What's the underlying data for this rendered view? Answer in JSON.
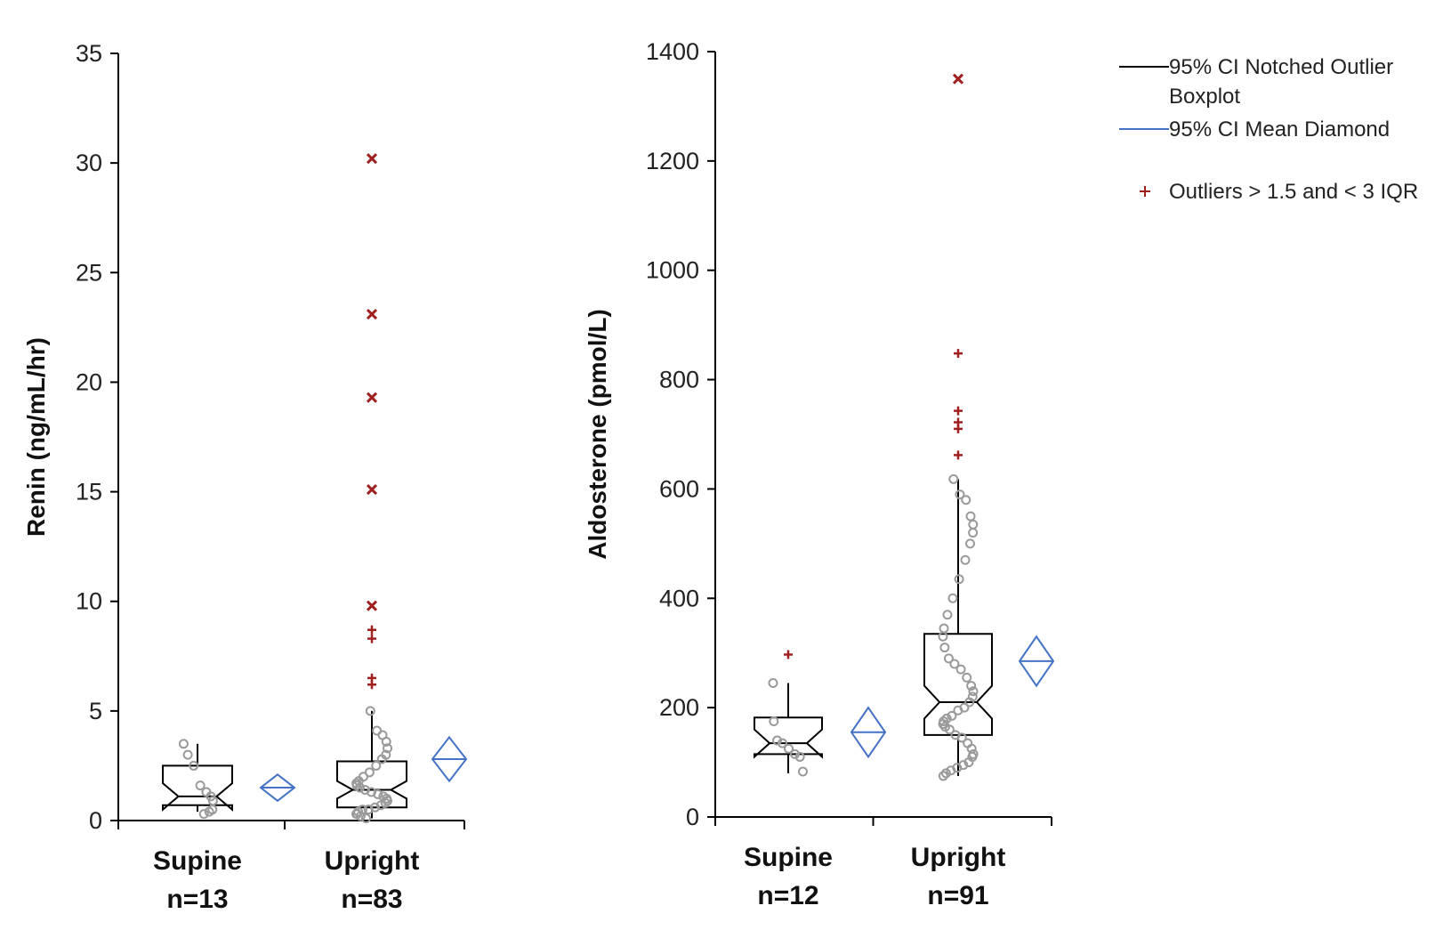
{
  "chart_data": [
    {
      "type": "boxplot",
      "ylabel": "Renin (ng/mL/hr)",
      "ylim": [
        0,
        35
      ],
      "yticks": [
        0,
        5,
        10,
        15,
        20,
        25,
        30,
        35
      ],
      "groups": [
        {
          "name": "Supine",
          "n_label": "n=13",
          "whisker_low": 0.4,
          "q1": 0.7,
          "median": 1.1,
          "q3": 2.5,
          "whisker_high": 3.5,
          "notch_low": 0.5,
          "notch_high": 1.7,
          "points": [
            0.3,
            0.4,
            0.5,
            0.9,
            1.1,
            1.3,
            1.6,
            2.5,
            3.0,
            3.5
          ],
          "outliers_mild": [],
          "outliers_extreme": [],
          "mean_diamond": {
            "mean": 1.5,
            "ci_low": 0.9,
            "ci_high": 2.1
          }
        },
        {
          "name": "Upright",
          "n_label": "n=83",
          "whisker_low": 0.1,
          "q1": 0.6,
          "median": 1.4,
          "q3": 2.7,
          "whisker_high": 5.0,
          "notch_low": 1.0,
          "notch_high": 1.8,
          "points": [
            0.1,
            0.2,
            0.3,
            0.3,
            0.4,
            0.5,
            0.5,
            0.6,
            0.7,
            0.8,
            0.9,
            1.0,
            1.1,
            1.2,
            1.3,
            1.4,
            1.5,
            1.6,
            1.7,
            1.8,
            2.0,
            2.2,
            2.5,
            2.8,
            3.0,
            3.3,
            3.6,
            3.9,
            4.1,
            5.0
          ],
          "outliers_mild": [
            6.2,
            6.5,
            8.3,
            8.7
          ],
          "outliers_extreme": [
            9.8,
            15.1,
            19.3,
            23.1,
            30.2
          ],
          "mean_diamond": {
            "mean": 2.8,
            "ci_low": 1.8,
            "ci_high": 3.8
          }
        }
      ]
    },
    {
      "type": "boxplot",
      "ylabel": "Aldosterone (pmol/L)",
      "ylim": [
        0,
        1400
      ],
      "yticks": [
        0,
        200,
        400,
        600,
        800,
        1000,
        1200,
        1400
      ],
      "groups": [
        {
          "name": "Supine",
          "n_label": "n=12",
          "whisker_low": 80,
          "q1": 115,
          "median": 135,
          "q3": 182,
          "whisker_high": 245,
          "notch_low": 110,
          "notch_high": 160,
          "points": [
            83,
            110,
            115,
            125,
            135,
            140,
            175,
            245
          ],
          "outliers_mild": [
            297
          ],
          "outliers_extreme": [],
          "mean_diamond": {
            "mean": 155,
            "ci_low": 110,
            "ci_high": 200
          }
        },
        {
          "name": "Upright",
          "n_label": "n=91",
          "whisker_low": 75,
          "q1": 150,
          "median": 210,
          "q3": 335,
          "whisker_high": 618,
          "notch_low": 180,
          "notch_high": 240,
          "points": [
            75,
            80,
            85,
            90,
            95,
            100,
            110,
            115,
            125,
            135,
            145,
            150,
            160,
            165,
            170,
            175,
            180,
            185,
            195,
            200,
            210,
            220,
            230,
            240,
            255,
            270,
            280,
            290,
            310,
            330,
            345,
            370,
            400,
            435,
            470,
            500,
            520,
            535,
            550,
            580,
            590,
            618
          ],
          "outliers_mild": [
            662,
            710,
            722,
            743,
            848
          ],
          "outliers_extreme": [
            1350
          ],
          "mean_diamond": {
            "mean": 285,
            "ci_low": 240,
            "ci_high": 330
          }
        }
      ]
    }
  ],
  "legend": {
    "items": [
      {
        "label": "95% CI Notched Outlier Boxplot",
        "line1": "95% CI Notched Outlier",
        "line2": "Boxplot",
        "color": "#000000",
        "symbol": "line"
      },
      {
        "label": "95% CI Mean Diamond",
        "line1": "95% CI Mean Diamond",
        "line2": "",
        "color": "#4472C4",
        "symbol": "line"
      },
      {
        "label": "Outliers > 1.5 and < 3 IQR",
        "line1": "Outliers > 1.5 and < 3 IQR",
        "line2": "",
        "color": "#A02020",
        "symbol": "+"
      }
    ]
  },
  "colors": {
    "box": "#000000",
    "points": "#9a9a9a",
    "diamond": "#4472C4",
    "outlier": "#A02020"
  }
}
